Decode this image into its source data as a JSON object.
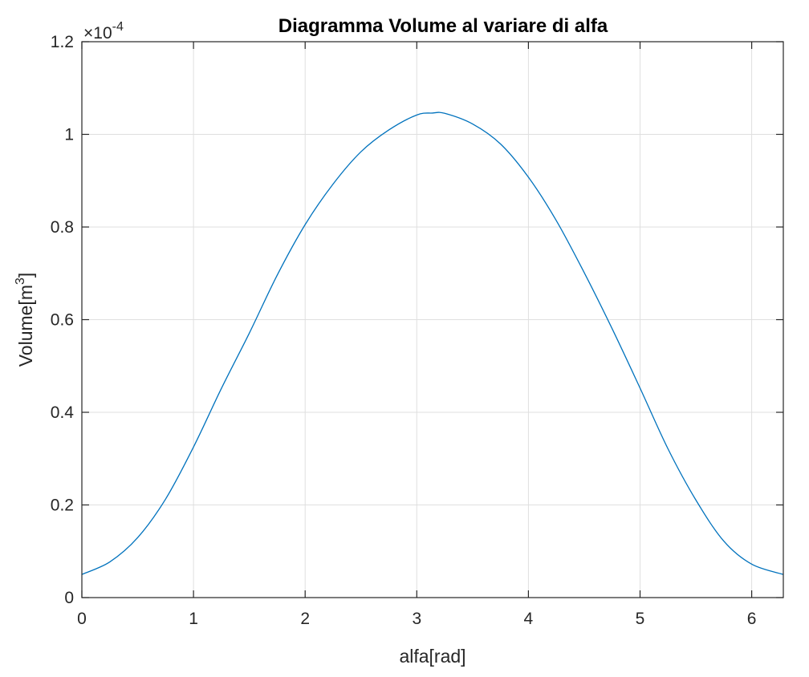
{
  "chart_data": {
    "type": "line",
    "title": "Diagramma Volume al variare di alfa",
    "xlabel": "alfa[rad]",
    "ylabel": {
      "base": "Volume[m",
      "sup": "3",
      "close": "]"
    },
    "y_exponent": {
      "mult": "×10",
      "sup": "-4"
    },
    "xlim": [
      0,
      6.2832
    ],
    "ylim": [
      0,
      1.2
    ],
    "xticks": [
      "0",
      "1",
      "2",
      "3",
      "4",
      "5",
      "6"
    ],
    "yticks": [
      "0",
      "0.2",
      "0.4",
      "0.6",
      "0.8",
      "1",
      "1.2"
    ],
    "grid": true,
    "series": [
      {
        "color": "#0072BD",
        "x": [
          0,
          0.25,
          0.5,
          0.75,
          1,
          1.25,
          1.5,
          1.75,
          2,
          2.25,
          2.5,
          2.75,
          3,
          3.1416,
          3.25,
          3.5,
          3.75,
          4,
          4.25,
          4.5,
          4.75,
          5,
          5.25,
          5.5,
          5.75,
          6,
          6.2832
        ],
        "y": [
          0.05,
          0.077,
          0.1295,
          0.2127,
          0.325,
          0.4516,
          0.5709,
          0.6962,
          0.8052,
          0.8926,
          0.9624,
          1.0096,
          1.0418,
          1.046,
          1.0454,
          1.0224,
          0.9792,
          0.9075,
          0.8138,
          0.7014,
          0.5804,
          0.4522,
          0.3212,
          0.2106,
          0.1219,
          0.0721,
          0.05
        ]
      }
    ]
  }
}
